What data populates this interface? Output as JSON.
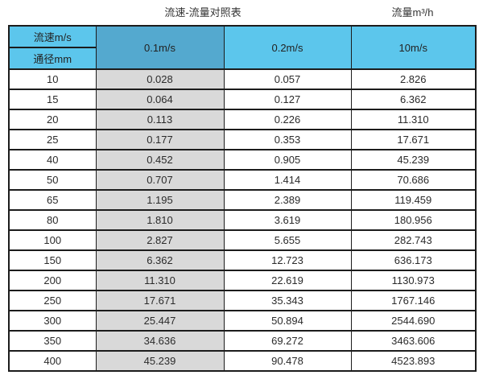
{
  "page": {
    "title_main": "流速-流量对照表",
    "title_right": "流量m³/h"
  },
  "table": {
    "corner_top": "流速m/s",
    "corner_bottom": "通径mm",
    "velocity_columns": [
      "0.1m/s",
      "0.2m/s",
      "10m/s"
    ],
    "rows": [
      {
        "dn": "10",
        "v01": "0.028",
        "v02": "0.057",
        "v10": "2.826"
      },
      {
        "dn": "15",
        "v01": "0.064",
        "v02": "0.127",
        "v10": "6.362"
      },
      {
        "dn": "20",
        "v01": "0.113",
        "v02": "0.226",
        "v10": "11.310"
      },
      {
        "dn": "25",
        "v01": "0.177",
        "v02": "0.353",
        "v10": "17.671"
      },
      {
        "dn": "40",
        "v01": "0.452",
        "v02": "0.905",
        "v10": "45.239"
      },
      {
        "dn": "50",
        "v01": "0.707",
        "v02": "1.414",
        "v10": "70.686"
      },
      {
        "dn": "65",
        "v01": "1.195",
        "v02": "2.389",
        "v10": "119.459"
      },
      {
        "dn": "80",
        "v01": "1.810",
        "v02": "3.619",
        "v10": "180.956"
      },
      {
        "dn": "100",
        "v01": "2.827",
        "v02": "5.655",
        "v10": "282.743"
      },
      {
        "dn": "150",
        "v01": "6.362",
        "v02": "12.723",
        "v10": "636.173"
      },
      {
        "dn": "200",
        "v01": "11.310",
        "v02": "22.619",
        "v10": "1130.973"
      },
      {
        "dn": "250",
        "v01": "17.671",
        "v02": "35.343",
        "v10": "1767.146"
      },
      {
        "dn": "300",
        "v01": "25.447",
        "v02": "50.894",
        "v10": "2544.690"
      },
      {
        "dn": "350",
        "v01": "34.636",
        "v02": "69.272",
        "v10": "3463.606"
      },
      {
        "dn": "400",
        "v01": "45.239",
        "v02": "90.478",
        "v10": "4523.893"
      }
    ]
  },
  "colors": {
    "header_blue": "#5cc6ec",
    "header_blue_dark": "#54a9cf",
    "col_gray": "#d9d9d9",
    "border": "#1c1c1c"
  },
  "chart_data": {
    "type": "table",
    "title": "流速-流量对照表",
    "unit_label": "流量m³/h",
    "row_header": "通径mm",
    "col_header": "流速m/s",
    "columns": [
      "0.1m/s",
      "0.2m/s",
      "10m/s"
    ],
    "dn_mm": [
      10,
      15,
      20,
      25,
      40,
      50,
      65,
      80,
      100,
      150,
      200,
      250,
      300,
      350,
      400
    ],
    "series": [
      {
        "name": "0.1m/s",
        "values": [
          0.028,
          0.064,
          0.113,
          0.177,
          0.452,
          0.707,
          1.195,
          1.81,
          2.827,
          6.362,
          11.31,
          17.671,
          25.447,
          34.636,
          45.239
        ]
      },
      {
        "name": "0.2m/s",
        "values": [
          0.057,
          0.127,
          0.226,
          0.353,
          0.905,
          1.414,
          2.389,
          3.619,
          5.655,
          12.723,
          22.619,
          35.343,
          50.894,
          69.272,
          90.478
        ]
      },
      {
        "name": "10m/s",
        "values": [
          2.826,
          6.362,
          11.31,
          17.671,
          45.239,
          70.686,
          119.459,
          180.956,
          282.743,
          636.173,
          1130.973,
          1767.146,
          2544.69,
          3463.606,
          4523.893
        ]
      }
    ]
  }
}
